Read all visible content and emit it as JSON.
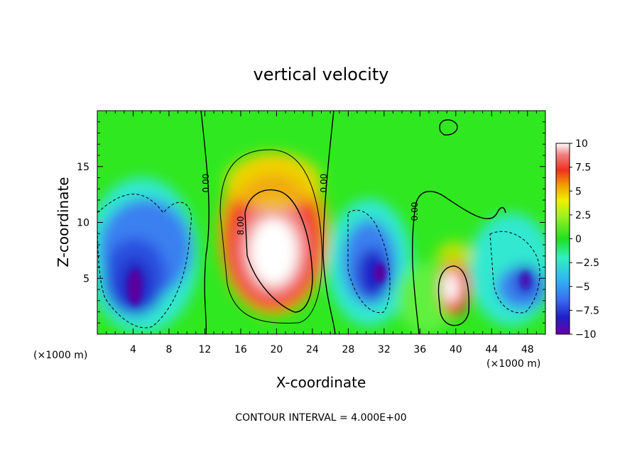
{
  "chart_data": {
    "type": "heatmap",
    "title": "vertical velocity",
    "xlabel": "X-coordinate",
    "ylabel": "Z-coordinate",
    "x_unit_left": "(×1000 m)",
    "x_unit_right": "(×1000 m)",
    "x_ticks": [
      "4",
      "8",
      "12",
      "16",
      "20",
      "24",
      "28",
      "32",
      "36",
      "40",
      "44",
      "48"
    ],
    "y_ticks": [
      "5",
      "10",
      "15"
    ],
    "xlim": [
      0,
      50
    ],
    "ylim": [
      0,
      20
    ],
    "footer": "CONTOUR INTERVAL = 4.000E+00",
    "colorbar": {
      "range": [
        -10,
        10
      ],
      "ticks": [
        "10",
        "7.5",
        "5",
        "2.5",
        "0",
        "−2.5",
        "−5",
        "−7.5",
        "−10"
      ],
      "colors": [
        "#6a00a8",
        "#2020c8",
        "#3a6cf0",
        "#30b8f0",
        "#30f0c0",
        "#20e020",
        "#a0f020",
        "#f0f000",
        "#f0a000",
        "#f03020",
        "#f08080",
        "#ffffff"
      ]
    },
    "contour_labels": [
      "0.00",
      "8.00",
      "0.00",
      "0.00"
    ],
    "features": [
      {
        "kind": "updraft",
        "x": 20,
        "z": 8,
        "peak": 10
      },
      {
        "kind": "downdraft",
        "x": 5,
        "z": 5,
        "peak": -10
      },
      {
        "kind": "downdraft",
        "x": 31,
        "z": 6,
        "peak": -10
      },
      {
        "kind": "updraft",
        "x": 39.5,
        "z": 3.5,
        "peak": 10
      },
      {
        "kind": "downdraft",
        "x": 47,
        "z": 4.5,
        "peak": -8
      }
    ]
  }
}
